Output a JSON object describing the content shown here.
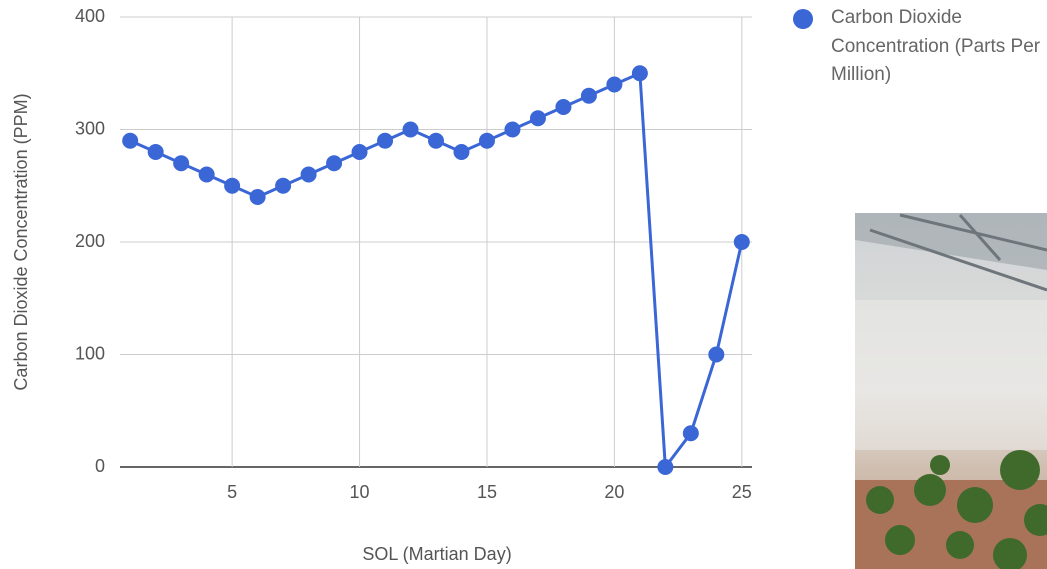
{
  "chart_data": {
    "type": "line",
    "x_label": "SOL (Martian Day)",
    "y_label": "Carbon Dioxide Concentration (PPM)",
    "x": [
      1,
      2,
      3,
      4,
      5,
      6,
      7,
      8,
      9,
      10,
      11,
      12,
      13,
      14,
      15,
      16,
      17,
      18,
      19,
      20,
      21,
      22,
      23,
      24,
      25
    ],
    "series": [
      {
        "name": "Carbon Dioxide Concentration (Parts Per Million)",
        "color": "#3a66d6",
        "values": [
          290,
          280,
          270,
          260,
          250,
          240,
          250,
          260,
          270,
          280,
          290,
          300,
          290,
          280,
          290,
          300,
          310,
          320,
          330,
          340,
          350,
          0,
          30,
          100,
          200
        ]
      }
    ],
    "xlim": [
      0.6,
      25.4
    ],
    "xticks": [
      5,
      10,
      15,
      20,
      25
    ],
    "ylim": [
      0,
      400
    ],
    "yticks": [
      0,
      100,
      200,
      300,
      400
    ],
    "grid": true,
    "legend": "right"
  }
}
